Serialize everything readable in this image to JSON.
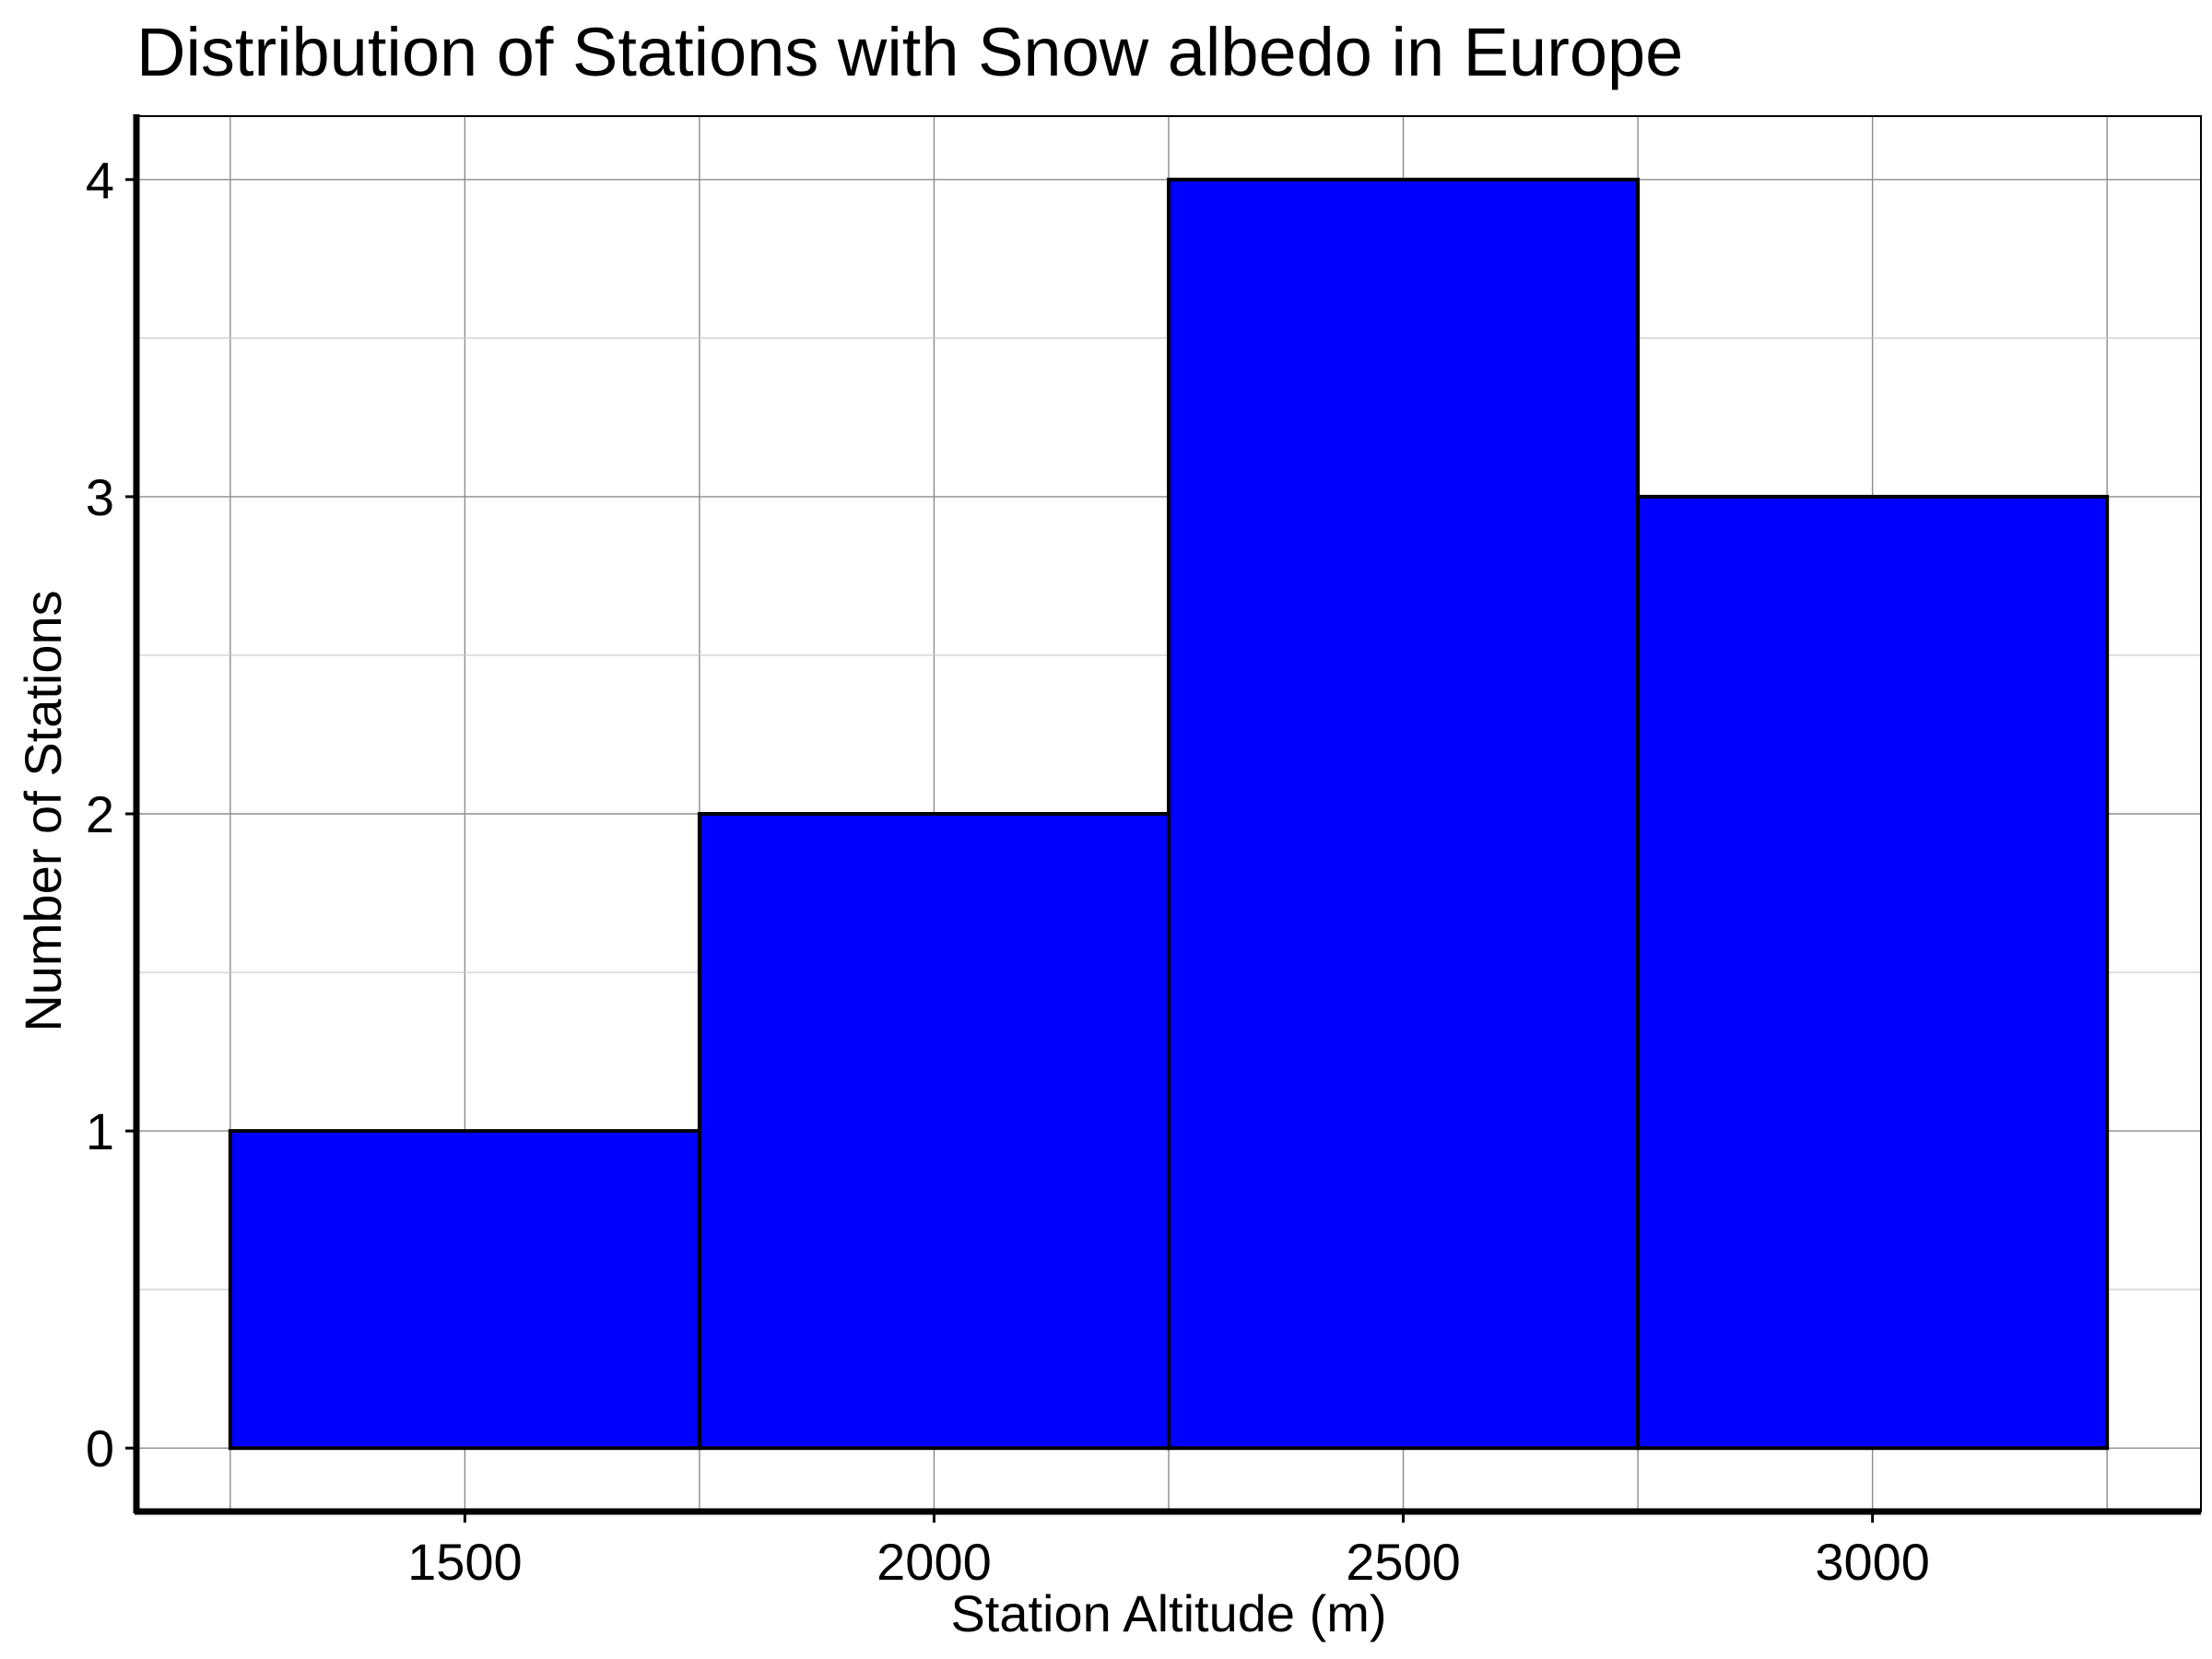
{
  "chart_data": {
    "type": "bar",
    "title": "Distribution of Stations with Snow albedo in Europe",
    "xlabel": "Station Altitude (m)",
    "ylabel": "Number of Stations",
    "bins": [
      {
        "start": 1250,
        "end": 1750,
        "count": 1
      },
      {
        "start": 1750,
        "end": 2250,
        "count": 2
      },
      {
        "start": 2250,
        "end": 2750,
        "count": 4
      },
      {
        "start": 2750,
        "end": 3250,
        "count": 3
      }
    ],
    "xticks": [
      1500,
      2000,
      2500,
      3000
    ],
    "yticks": [
      0,
      1,
      2,
      3,
      4
    ],
    "xlim": [
      1150,
      3350
    ],
    "ylim": [
      -0.2,
      4.2
    ],
    "bar_color": "#0000ff",
    "edge_color": "#000000",
    "grid": true
  }
}
